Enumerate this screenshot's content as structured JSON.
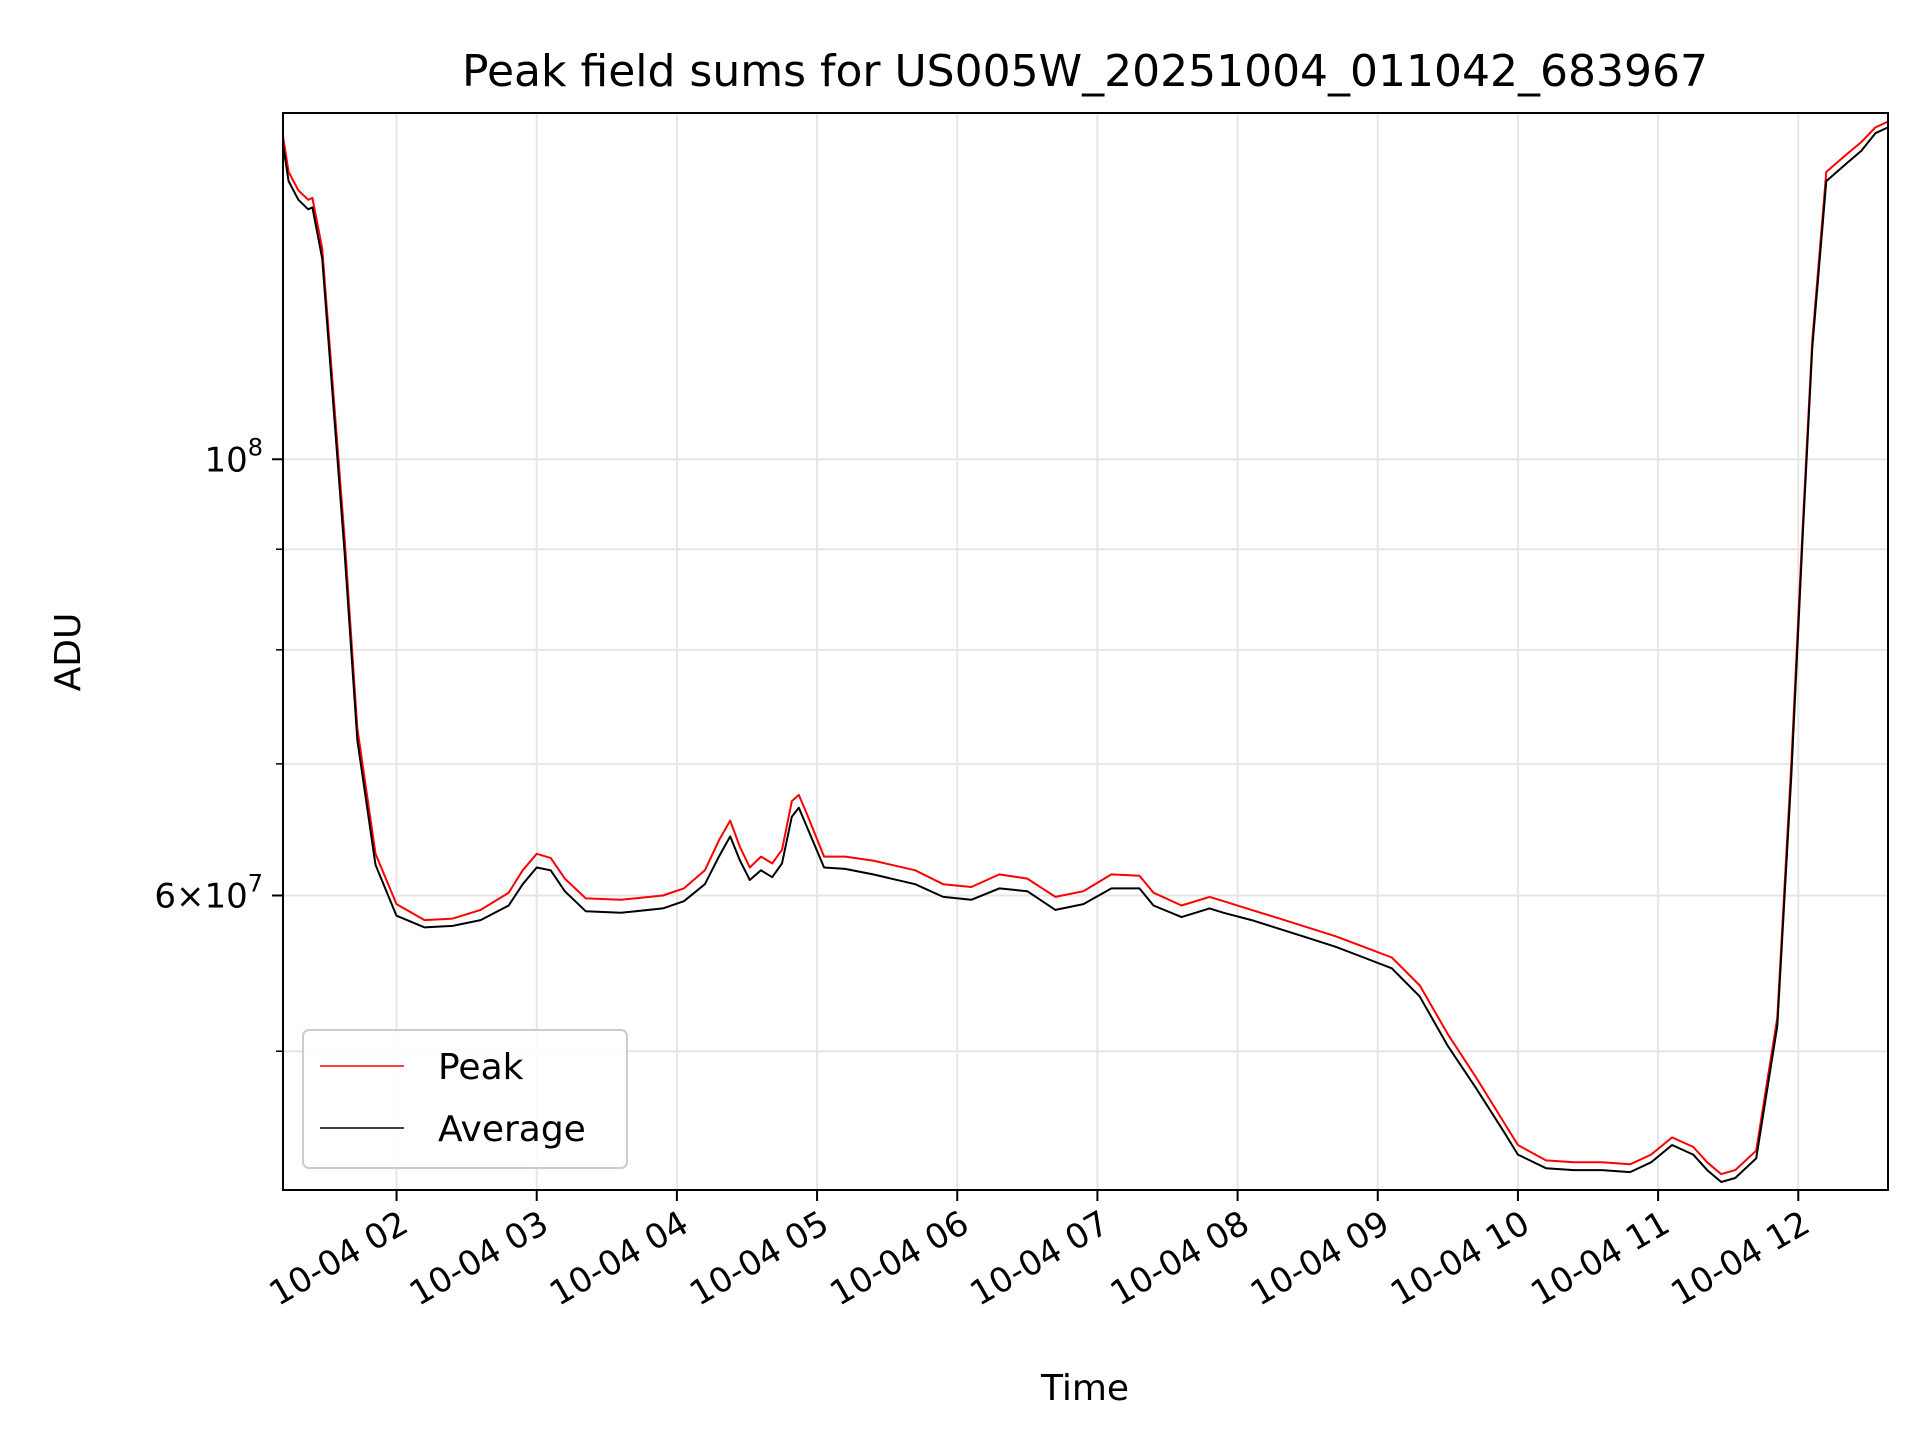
{
  "chart_data": {
    "type": "line",
    "title": "Peak field sums for US005W_20251004_011042_683967",
    "xlabel": "Time",
    "ylabel": "ADU",
    "yscale": "log",
    "ylim": [
      42500000,
      150000000
    ],
    "xlim": [
      1.19,
      12.64
    ],
    "x_ticks": [
      {
        "value": 2,
        "label": "10-04 02"
      },
      {
        "value": 3,
        "label": "10-04 03"
      },
      {
        "value": 4,
        "label": "10-04 04"
      },
      {
        "value": 5,
        "label": "10-04 05"
      },
      {
        "value": 6,
        "label": "10-04 06"
      },
      {
        "value": 7,
        "label": "10-04 07"
      },
      {
        "value": 8,
        "label": "10-04 08"
      },
      {
        "value": 9,
        "label": "10-04 09"
      },
      {
        "value": 10,
        "label": "10-04 10"
      },
      {
        "value": 11,
        "label": "10-04 11"
      },
      {
        "value": 12,
        "label": "10-04 12"
      }
    ],
    "y_major_ticks": [
      {
        "value": 100000000,
        "base": "10",
        "exp": "8",
        "mult": ""
      },
      {
        "value": 60000000,
        "base": "10",
        "exp": "7",
        "mult": "6"
      }
    ],
    "y_minor_ticks": [
      50000000,
      70000000,
      80000000,
      90000000
    ],
    "grid": true,
    "legend": {
      "position": "lower-left"
    },
    "series": [
      {
        "name": "Peak",
        "color": "#ff0000",
        "x": [
          1.19,
          1.23,
          1.3,
          1.37,
          1.4,
          1.47,
          1.63,
          1.72,
          1.85,
          2.0,
          2.2,
          2.4,
          2.6,
          2.8,
          2.9,
          3.0,
          3.1,
          3.2,
          3.35,
          3.6,
          3.9,
          4.05,
          4.2,
          4.3,
          4.38,
          4.45,
          4.52,
          4.6,
          4.68,
          4.75,
          4.82,
          4.87,
          4.92,
          5.05,
          5.2,
          5.4,
          5.7,
          5.9,
          6.1,
          6.3,
          6.5,
          6.7,
          6.9,
          7.1,
          7.3,
          7.4,
          7.6,
          7.8,
          7.9,
          8.1,
          8.3,
          8.5,
          8.7,
          8.9,
          9.1,
          9.3,
          9.5,
          9.7,
          9.9,
          10.0,
          10.2,
          10.4,
          10.6,
          10.8,
          10.95,
          11.1,
          11.25,
          11.35,
          11.45,
          11.55,
          11.7,
          11.85,
          11.95,
          12.03,
          12.1,
          12.2,
          12.35,
          12.45,
          12.55,
          12.64
        ],
        "y": [
          146000000,
          140000000,
          137000000,
          135500000,
          135800000,
          128000000,
          91000000,
          73000000,
          63000000,
          59400000,
          58300000,
          58400000,
          59000000,
          60200000,
          61800000,
          63000000,
          62700000,
          61200000,
          59800000,
          59700000,
          60000000,
          60500000,
          61800000,
          64000000,
          65500000,
          63500000,
          62000000,
          62800000,
          62300000,
          63300000,
          67000000,
          67500000,
          66200000,
          62800000,
          62800000,
          62500000,
          61800000,
          60800000,
          60600000,
          61500000,
          61200000,
          59900000,
          60300000,
          61500000,
          61400000,
          60200000,
          59300000,
          59900000,
          59600000,
          59000000,
          58400000,
          57800000,
          57200000,
          56500000,
          55800000,
          54000000,
          51000000,
          48500000,
          46000000,
          44800000,
          44000000,
          43900000,
          43900000,
          43800000,
          44300000,
          45200000,
          44700000,
          43900000,
          43300000,
          43500000,
          44500000,
          52000000,
          70000000,
          92000000,
          115000000,
          140000000,
          143000000,
          145000000,
          147500000,
          148500000
        ]
      },
      {
        "name": "Average",
        "color": "#000000",
        "x": [
          1.19,
          1.23,
          1.3,
          1.37,
          1.4,
          1.47,
          1.63,
          1.72,
          1.85,
          2.0,
          2.2,
          2.4,
          2.6,
          2.8,
          2.9,
          3.0,
          3.1,
          3.2,
          3.35,
          3.6,
          3.9,
          4.05,
          4.2,
          4.3,
          4.38,
          4.45,
          4.52,
          4.6,
          4.68,
          4.75,
          4.82,
          4.87,
          4.92,
          5.05,
          5.2,
          5.4,
          5.7,
          5.9,
          6.1,
          6.3,
          6.5,
          6.7,
          6.9,
          7.1,
          7.3,
          7.4,
          7.6,
          7.8,
          7.9,
          8.1,
          8.3,
          8.5,
          8.7,
          8.9,
          9.1,
          9.3,
          9.5,
          9.7,
          9.9,
          10.0,
          10.2,
          10.4,
          10.6,
          10.8,
          10.95,
          11.1,
          11.25,
          11.35,
          11.45,
          11.55,
          11.7,
          11.85,
          11.95,
          12.03,
          12.1,
          12.2,
          12.35,
          12.45,
          12.55,
          12.64
        ],
        "y": [
          144500000,
          138500000,
          135500000,
          134000000,
          134300000,
          126500000,
          89500000,
          72000000,
          62200000,
          58600000,
          57800000,
          57900000,
          58300000,
          59300000,
          60800000,
          62000000,
          61800000,
          60300000,
          58900000,
          58800000,
          59100000,
          59600000,
          60800000,
          62800000,
          64300000,
          62500000,
          61100000,
          61800000,
          61300000,
          62300000,
          65800000,
          66500000,
          65200000,
          62000000,
          61900000,
          61500000,
          60800000,
          59900000,
          59700000,
          60500000,
          60300000,
          59000000,
          59400000,
          60500000,
          60500000,
          59300000,
          58500000,
          59100000,
          58800000,
          58300000,
          57700000,
          57100000,
          56500000,
          55800000,
          55100000,
          53300000,
          50300000,
          47900000,
          45500000,
          44300000,
          43600000,
          43500000,
          43500000,
          43400000,
          43900000,
          44800000,
          44300000,
          43500000,
          42900000,
          43100000,
          44100000,
          51500000,
          69000000,
          91000000,
          114000000,
          138500000,
          141500000,
          143500000,
          146500000,
          147500000
        ]
      }
    ]
  }
}
